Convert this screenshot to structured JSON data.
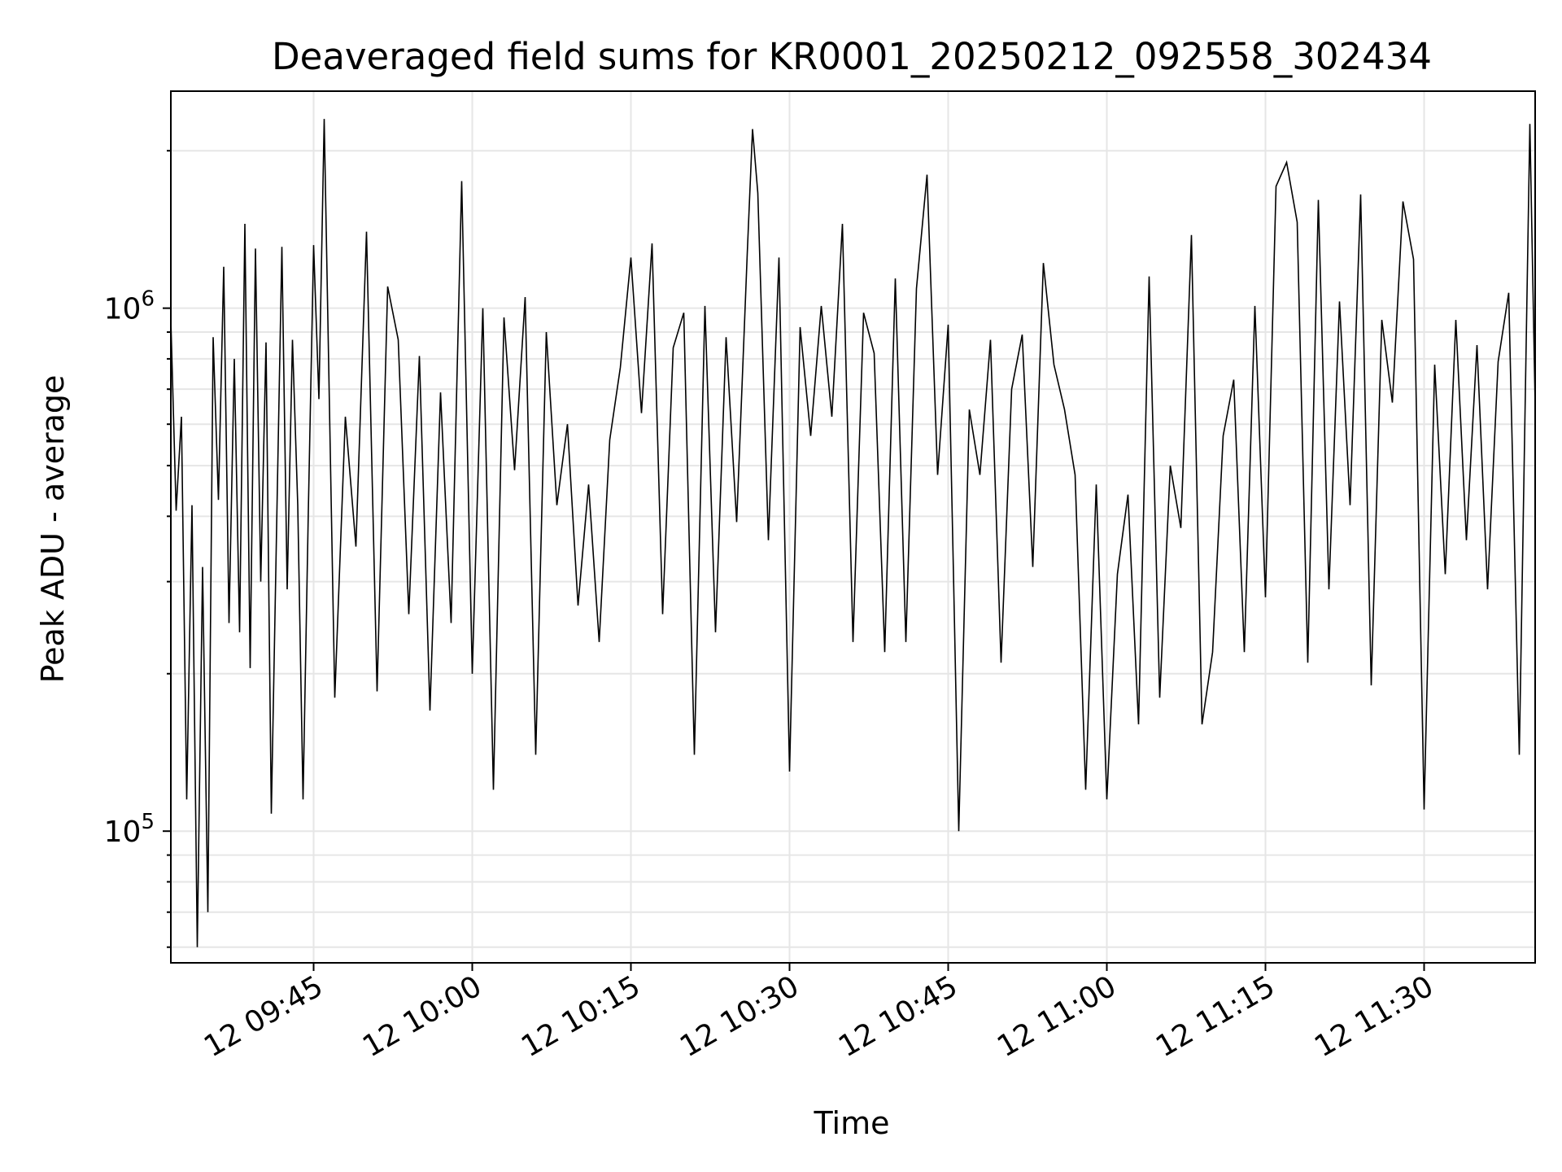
{
  "chart_data": {
    "type": "line",
    "title": "Deaveraged field sums for KR0001_20250212_092558_302434",
    "xlabel": "Time",
    "ylabel": "Peak ADU - average",
    "yscale": "log",
    "xlim": [
      "2025-02-12 09:31:30",
      "2025-02-12 11:40:30"
    ],
    "ylim": [
      56000,
      2600000
    ],
    "x_tick_labels": [
      "12 09:45",
      "12 10:00",
      "12 10:15",
      "12 10:30",
      "12 10:45",
      "12 11:00",
      "12 11:15",
      "12 11:30"
    ],
    "x_tick_values": [
      "2025-02-12 09:45",
      "2025-02-12 10:00",
      "2025-02-12 10:15",
      "2025-02-12 10:30",
      "2025-02-12 10:45",
      "2025-02-12 11:00",
      "2025-02-12 11:15",
      "2025-02-12 11:30"
    ],
    "y_tick_values": [
      100000,
      1000000
    ],
    "y_tick_labels": [
      {
        "base": "10",
        "exp": "5"
      },
      {
        "base": "10",
        "exp": "6"
      }
    ],
    "grid": true,
    "line_color": "#000000",
    "series": [
      {
        "x": [
          "2025-02-12 09:31:30",
          "2025-02-12 09:32:00",
          "2025-02-12 09:32:30",
          "2025-02-12 09:33:00",
          "2025-02-12 09:33:30",
          "2025-02-12 09:34:00",
          "2025-02-12 09:34:30",
          "2025-02-12 09:35:00",
          "2025-02-12 09:35:30",
          "2025-02-12 09:36:00",
          "2025-02-12 09:36:30",
          "2025-02-12 09:37:00",
          "2025-02-12 09:37:30",
          "2025-02-12 09:38:00",
          "2025-02-12 09:38:30",
          "2025-02-12 09:39:00",
          "2025-02-12 09:39:30",
          "2025-02-12 09:40:00",
          "2025-02-12 09:40:30",
          "2025-02-12 09:41:00",
          "2025-02-12 09:41:30",
          "2025-02-12 09:42:00",
          "2025-02-12 09:42:30",
          "2025-02-12 09:43:00",
          "2025-02-12 09:43:30",
          "2025-02-12 09:44:00",
          "2025-02-12 09:44:30",
          "2025-02-12 09:45:00",
          "2025-02-12 09:45:30",
          "2025-02-12 09:46:00",
          "2025-02-12 09:47:00",
          "2025-02-12 09:48:00",
          "2025-02-12 09:49:00",
          "2025-02-12 09:50:00",
          "2025-02-12 09:51:00",
          "2025-02-12 09:52:00",
          "2025-02-12 09:53:00",
          "2025-02-12 09:54:00",
          "2025-02-12 09:55:00",
          "2025-02-12 09:56:00",
          "2025-02-12 09:57:00",
          "2025-02-12 09:58:00",
          "2025-02-12 09:59:00",
          "2025-02-12 10:00:00",
          "2025-02-12 10:01:00",
          "2025-02-12 10:02:00",
          "2025-02-12 10:03:00",
          "2025-02-12 10:04:00",
          "2025-02-12 10:05:00",
          "2025-02-12 10:06:00",
          "2025-02-12 10:07:00",
          "2025-02-12 10:08:00",
          "2025-02-12 10:09:00",
          "2025-02-12 10:10:00",
          "2025-02-12 10:11:00",
          "2025-02-12 10:12:00",
          "2025-02-12 10:13:00",
          "2025-02-12 10:14:00",
          "2025-02-12 10:15:00",
          "2025-02-12 10:16:00",
          "2025-02-12 10:17:00",
          "2025-02-12 10:18:00",
          "2025-02-12 10:19:00",
          "2025-02-12 10:20:00",
          "2025-02-12 10:21:00",
          "2025-02-12 10:22:00",
          "2025-02-12 10:23:00",
          "2025-02-12 10:24:00",
          "2025-02-12 10:25:00",
          "2025-02-12 10:26:00",
          "2025-02-12 10:26:30",
          "2025-02-12 10:27:00",
          "2025-02-12 10:28:00",
          "2025-02-12 10:29:00",
          "2025-02-12 10:30:00",
          "2025-02-12 10:31:00",
          "2025-02-12 10:32:00",
          "2025-02-12 10:33:00",
          "2025-02-12 10:34:00",
          "2025-02-12 10:35:00",
          "2025-02-12 10:36:00",
          "2025-02-12 10:37:00",
          "2025-02-12 10:38:00",
          "2025-02-12 10:39:00",
          "2025-02-12 10:40:00",
          "2025-02-12 10:41:00",
          "2025-02-12 10:42:00",
          "2025-02-12 10:43:00",
          "2025-02-12 10:44:00",
          "2025-02-12 10:45:00",
          "2025-02-12 10:45:30",
          "2025-02-12 10:46:00",
          "2025-02-12 10:47:00",
          "2025-02-12 10:48:00",
          "2025-02-12 10:49:00",
          "2025-02-12 10:50:00",
          "2025-02-12 10:51:00",
          "2025-02-12 10:52:00",
          "2025-02-12 10:53:00",
          "2025-02-12 10:54:00",
          "2025-02-12 10:55:00",
          "2025-02-12 10:56:00",
          "2025-02-12 10:57:00",
          "2025-02-12 10:58:00",
          "2025-02-12 10:59:00",
          "2025-02-12 11:00:00",
          "2025-02-12 11:01:00",
          "2025-02-12 11:02:00",
          "2025-02-12 11:03:00",
          "2025-02-12 11:04:00",
          "2025-02-12 11:05:00",
          "2025-02-12 11:06:00",
          "2025-02-12 11:07:00",
          "2025-02-12 11:08:00",
          "2025-02-12 11:09:00",
          "2025-02-12 11:10:00",
          "2025-02-12 11:11:00",
          "2025-02-12 11:12:00",
          "2025-02-12 11:13:00",
          "2025-02-12 11:14:00",
          "2025-02-12 11:15:00",
          "2025-02-12 11:16:00",
          "2025-02-12 11:17:00",
          "2025-02-12 11:18:00",
          "2025-02-12 11:19:00",
          "2025-02-12 11:20:00",
          "2025-02-12 11:21:00",
          "2025-02-12 11:22:00",
          "2025-02-12 11:23:00",
          "2025-02-12 11:24:00",
          "2025-02-12 11:25:00",
          "2025-02-12 11:26:00",
          "2025-02-12 11:27:00",
          "2025-02-12 11:28:00",
          "2025-02-12 11:29:00",
          "2025-02-12 11:30:00",
          "2025-02-12 11:31:00",
          "2025-02-12 11:32:00",
          "2025-02-12 11:33:00",
          "2025-02-12 11:34:00",
          "2025-02-12 11:35:00",
          "2025-02-12 11:36:00",
          "2025-02-12 11:37:00",
          "2025-02-12 11:38:00",
          "2025-02-12 11:39:00",
          "2025-02-12 11:40:00",
          "2025-02-12 11:40:30"
        ],
        "values": [
          950000,
          410000,
          620000,
          115000,
          420000,
          60000,
          320000,
          70000,
          880000,
          430000,
          1200000,
          250000,
          800000,
          240000,
          1450000,
          205000,
          1300000,
          300000,
          860000,
          108000,
          380000,
          1310000,
          290000,
          870000,
          420000,
          115000,
          410000,
          1320000,
          670000,
          2300000,
          180000,
          620000,
          350000,
          1400000,
          185000,
          1100000,
          870000,
          260000,
          810000,
          170000,
          690000,
          250000,
          1750000,
          200000,
          1000000,
          120000,
          960000,
          490000,
          1050000,
          140000,
          900000,
          420000,
          600000,
          270000,
          460000,
          230000,
          560000,
          770000,
          1250000,
          630000,
          1330000,
          260000,
          840000,
          980000,
          140000,
          1010000,
          240000,
          880000,
          390000,
          1270000,
          2200000,
          1660000,
          360000,
          1250000,
          130000,
          920000,
          570000,
          1010000,
          620000,
          1450000,
          230000,
          980000,
          820000,
          220000,
          1140000,
          230000,
          1090000,
          1800000,
          480000,
          930000,
          310000,
          100000,
          640000,
          480000,
          870000,
          210000,
          700000,
          890000,
          320000,
          1220000,
          780000,
          640000,
          480000,
          120000,
          460000,
          115000,
          310000,
          440000,
          160000,
          1150000,
          180000,
          500000,
          380000,
          1380000,
          160000,
          220000,
          570000,
          730000,
          220000,
          1010000,
          280000,
          1710000,
          1900000,
          1460000,
          210000,
          1610000,
          290000,
          1030000,
          420000,
          1650000,
          190000,
          950000,
          660000,
          1600000,
          1240000,
          110000,
          780000,
          310000,
          950000,
          360000,
          850000,
          290000,
          790000,
          1070000,
          140000,
          2250000,
          650000
        ]
      }
    ]
  }
}
